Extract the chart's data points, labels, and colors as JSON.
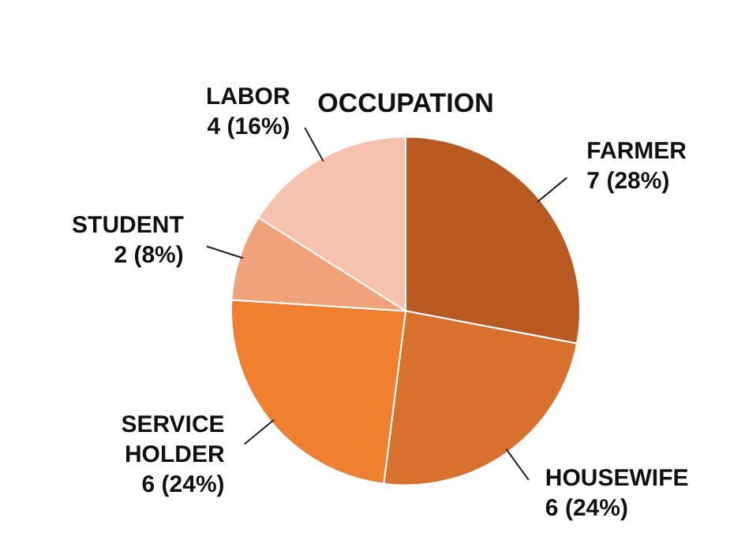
{
  "chart_data": {
    "type": "pie",
    "title": "OCCUPATION",
    "categories": [
      "FARMER",
      "HOUSEWIFE",
      "SERVICE HOLDER",
      "STUDENT",
      "LABOR"
    ],
    "values": [
      7,
      6,
      6,
      2,
      4
    ],
    "colors": [
      "#b85a22",
      "#d8702e",
      "#f07f30",
      "#f0a27a",
      "#f5c3ad"
    ],
    "value_labels": [
      "7 (28%)",
      "6 (24%)",
      "6 (24%)",
      "2 (8%)",
      "4 (16%)"
    ]
  }
}
